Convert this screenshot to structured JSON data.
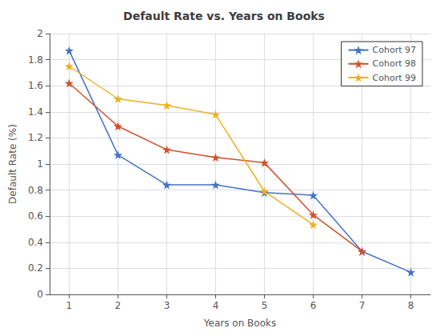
{
  "chart_data": {
    "type": "line",
    "title": "Default Rate vs. Years on Books",
    "xlabel": "Years on Books",
    "ylabel": "Default Rate (%)",
    "series": [
      {
        "name": "Cohort 97",
        "color": "#4472C4",
        "marker": "star",
        "x": [
          1,
          2,
          3,
          4,
          5,
          6,
          7,
          8
        ],
        "values": [
          1.87,
          1.07,
          0.84,
          0.84,
          0.78,
          0.76,
          0.33,
          0.17
        ]
      },
      {
        "name": "Cohort 98",
        "color": "#D2502B",
        "marker": "star",
        "x": [
          1,
          2,
          3,
          4,
          5,
          6,
          7
        ],
        "values": [
          1.62,
          1.29,
          1.11,
          1.05,
          1.01,
          0.61,
          0.33
        ]
      },
      {
        "name": "Cohort 99",
        "color": "#EDB120",
        "marker": "star",
        "x": [
          1,
          2,
          3,
          4,
          5,
          6
        ],
        "values": [
          1.75,
          1.5,
          1.45,
          1.38,
          0.79,
          0.535
        ]
      }
    ],
    "xlim": [
      0.6,
      8.4
    ],
    "ylim": [
      0,
      2
    ],
    "xticks": [
      1,
      2,
      3,
      4,
      5,
      6,
      7,
      8
    ],
    "yticks": [
      0,
      0.2,
      0.4,
      0.6,
      0.8,
      1,
      1.2,
      1.4,
      1.6,
      1.8,
      2
    ],
    "grid": true,
    "legend": "upper right"
  }
}
